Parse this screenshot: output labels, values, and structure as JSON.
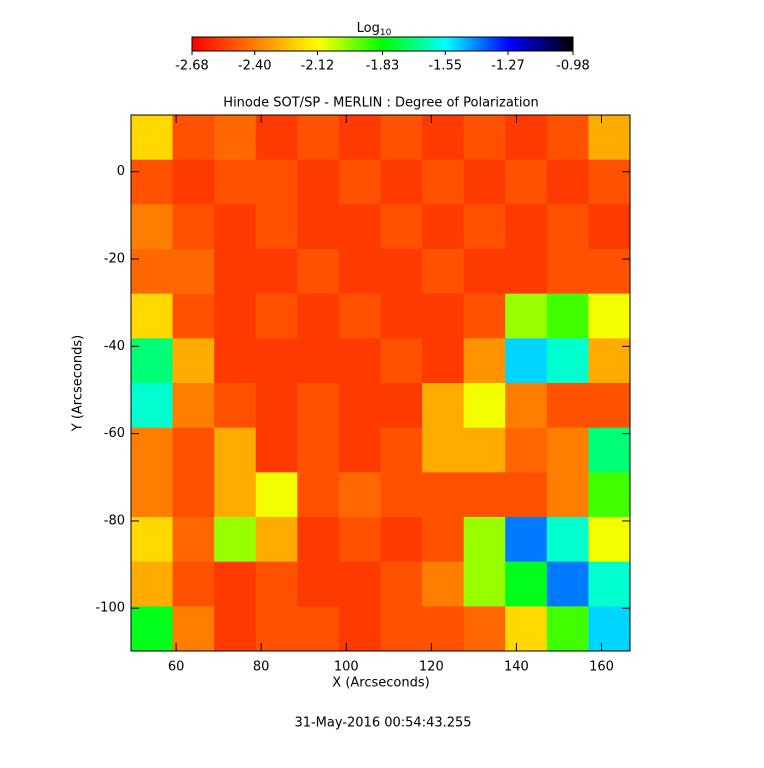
{
  "chart_data": {
    "type": "heatmap",
    "title": "Hinode SOT/SP - MERLIN : Degree of Polarization",
    "x_label": "X (Arcseconds)",
    "y_label": "Y (Arcseconds)",
    "footer": "31-May-2016 00:54:43.255",
    "colorbar": {
      "label": {
        "base": "Log",
        "subscript": "10"
      },
      "ticks": [
        {
          "value": -2.68,
          "label": "-2.68"
        },
        {
          "value": -2.4,
          "label": "-2.40"
        },
        {
          "value": -2.12,
          "label": "-2.12"
        },
        {
          "value": -1.83,
          "label": "-1.83"
        },
        {
          "value": -1.55,
          "label": "-1.55"
        },
        {
          "value": -1.27,
          "label": "-1.27"
        },
        {
          "value": -0.98,
          "label": "-0.98"
        }
      ]
    },
    "clim": [
      -2.68,
      -0.98
    ],
    "colormap": [
      "#ff0000",
      "#ff7f00",
      "#ffff00",
      "#00ff00",
      "#00ffff",
      "#0000ff",
      "#000000"
    ],
    "xlim": [
      49.4,
      166.7
    ],
    "ylim": [
      -109.8,
      13
    ],
    "xticks": [
      60,
      80,
      100,
      120,
      140,
      160
    ],
    "yticks": [
      0,
      -20,
      -40,
      -60,
      -80,
      -100
    ],
    "z": [
      [
        -2.2,
        -2.5,
        -2.45,
        -2.55,
        -2.5,
        -2.55,
        -2.5,
        -2.55,
        -2.5,
        -2.55,
        -2.5,
        -2.3
      ],
      [
        -2.5,
        -2.55,
        -2.5,
        -2.5,
        -2.55,
        -2.5,
        -2.55,
        -2.5,
        -2.55,
        -2.5,
        -2.55,
        -2.5
      ],
      [
        -2.4,
        -2.5,
        -2.55,
        -2.5,
        -2.55,
        -2.55,
        -2.5,
        -2.55,
        -2.5,
        -2.55,
        -2.5,
        -2.55
      ],
      [
        -2.45,
        -2.45,
        -2.55,
        -2.55,
        -2.5,
        -2.55,
        -2.55,
        -2.5,
        -2.55,
        -2.55,
        -2.5,
        -2.5
      ],
      [
        -2.2,
        -2.5,
        -2.55,
        -2.5,
        -2.55,
        -2.5,
        -2.55,
        -2.55,
        -2.5,
        -2.0,
        -1.9,
        -2.1
      ],
      [
        -1.7,
        -2.3,
        -2.55,
        -2.55,
        -2.55,
        -2.55,
        -2.5,
        -2.55,
        -2.35,
        -1.5,
        -1.6,
        -2.3
      ],
      [
        -1.6,
        -2.4,
        -2.5,
        -2.55,
        -2.5,
        -2.55,
        -2.55,
        -2.3,
        -2.1,
        -2.4,
        -2.5,
        -2.5
      ],
      [
        -2.4,
        -2.5,
        -2.3,
        -2.55,
        -2.5,
        -2.55,
        -2.5,
        -2.3,
        -2.3,
        -2.45,
        -2.4,
        -1.7
      ],
      [
        -2.4,
        -2.5,
        -2.3,
        -2.1,
        -2.5,
        -2.45,
        -2.5,
        -2.5,
        -2.5,
        -2.5,
        -2.4,
        -1.9
      ],
      [
        -2.2,
        -2.45,
        -2.0,
        -2.3,
        -2.55,
        -2.5,
        -2.55,
        -2.5,
        -2.0,
        -1.4,
        -1.6,
        -2.1
      ],
      [
        -2.3,
        -2.5,
        -2.55,
        -2.5,
        -2.55,
        -2.55,
        -2.5,
        -2.4,
        -2.0,
        -1.8,
        -1.4,
        -1.6
      ],
      [
        -1.8,
        -2.4,
        -2.55,
        -2.5,
        -2.5,
        -2.55,
        -2.5,
        -2.5,
        -2.45,
        -2.2,
        -1.9,
        -1.5
      ]
    ]
  }
}
